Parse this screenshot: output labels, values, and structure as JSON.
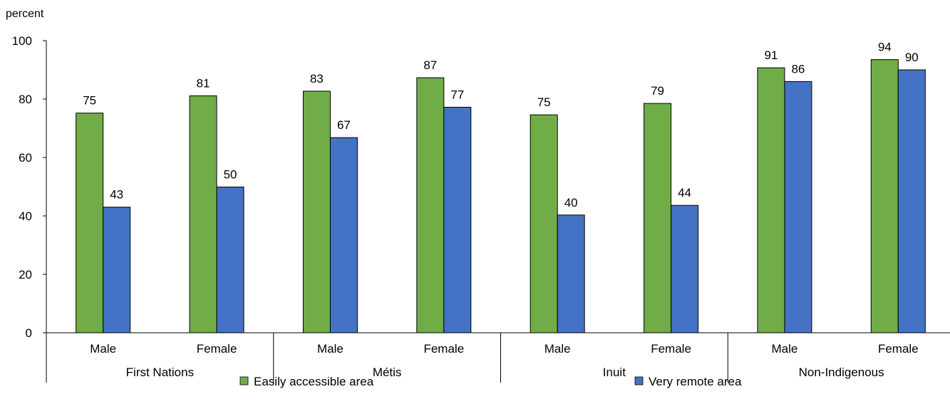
{
  "chart_data": {
    "type": "bar",
    "ylabel": "percent",
    "ylim": [
      0,
      100
    ],
    "yticks": [
      0,
      20,
      40,
      60,
      80,
      100
    ],
    "grid": false,
    "legend_position": "bottom",
    "groups": [
      "First Nations",
      "Métis",
      "Inuit",
      "Non-Indigenous"
    ],
    "categories": [
      "Male",
      "Female",
      "Male",
      "Female",
      "Male",
      "Female",
      "Male",
      "Female"
    ],
    "series": [
      {
        "name": "Easily accessible area",
        "color": "#70AD47",
        "values": [
          75,
          81,
          83,
          87,
          75,
          79,
          91,
          94
        ],
        "heights": [
          75.2,
          81.1,
          82.7,
          87.3,
          74.6,
          78.5,
          90.7,
          93.5
        ]
      },
      {
        "name": "Very remote area",
        "color": "#4472C4",
        "values": [
          43,
          50,
          67,
          77,
          40,
          44,
          86,
          90
        ],
        "heights": [
          43.0,
          49.9,
          66.8,
          77.2,
          40.3,
          43.6,
          86.0,
          90.0
        ]
      }
    ]
  }
}
